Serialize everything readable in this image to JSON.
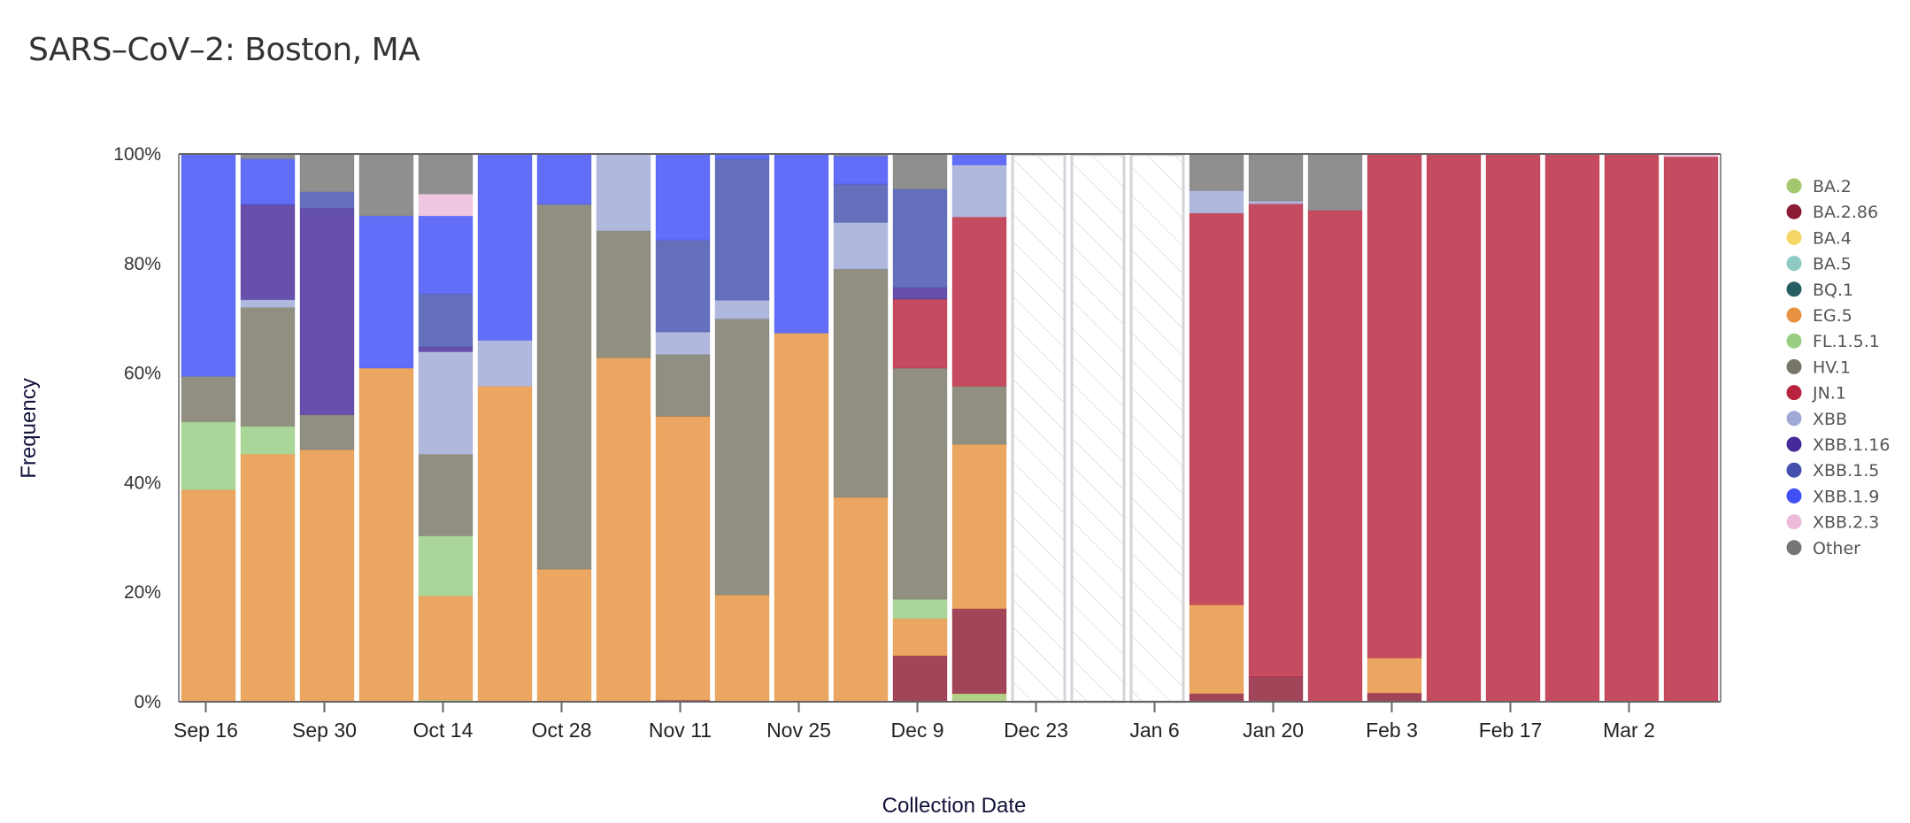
{
  "title": "SARS–CoV–2: Boston, MA",
  "chart_data": {
    "type": "bar",
    "stacked": true,
    "normalized": true,
    "title": "SARS–CoV–2: Boston, MA",
    "xlabel": "Collection Date",
    "ylabel": "Frequency",
    "ylim": [
      0,
      100
    ],
    "yticks": [
      "0%",
      "20%",
      "40%",
      "60%",
      "80%",
      "100%"
    ],
    "xtick_labels": [
      "Sep 16",
      "Sep 30",
      "Oct 14",
      "Oct 28",
      "Nov 11",
      "Nov 25",
      "Dec 9",
      "Dec 23",
      "Jan 6",
      "Jan 20",
      "Feb 3",
      "Feb 17",
      "Mar 2"
    ],
    "legend_position": "right",
    "legend": [
      {
        "name": "BA.2",
        "color": "#a2c76e"
      },
      {
        "name": "BA.2.86",
        "color": "#8c1c34"
      },
      {
        "name": "BA.4",
        "color": "#f5d666"
      },
      {
        "name": "BA.5",
        "color": "#8ecac4"
      },
      {
        "name": "BQ.1",
        "color": "#265e63"
      },
      {
        "name": "EG.5",
        "color": "#e69240"
      },
      {
        "name": "FL.1.5.1",
        "color": "#98cd82"
      },
      {
        "name": "HV.1",
        "color": "#777666"
      },
      {
        "name": "JN.1",
        "color": "#b8233d"
      },
      {
        "name": "XBB",
        "color": "#a0a8d6"
      },
      {
        "name": "XBB.1.16",
        "color": "#462a99"
      },
      {
        "name": "XBB.1.5",
        "color": "#4350ae"
      },
      {
        "name": "XBB.1.9",
        "color": "#3f4ef5"
      },
      {
        "name": "XBB.2.3",
        "color": "#ecbbdb"
      },
      {
        "name": "Other",
        "color": "#767676"
      }
    ],
    "categories": [
      "Sep 16",
      "Sep 23",
      "Sep 30",
      "Oct 7",
      "Oct 14",
      "Oct 21",
      "Oct 28",
      "Nov 4",
      "Nov 11",
      "Nov 18",
      "Nov 25",
      "Dec 2",
      "Dec 9",
      "Dec 16",
      "Dec 23",
      "Dec 30",
      "Jan 6",
      "Jan 13",
      "Jan 20",
      "Jan 27",
      "Feb 3",
      "Feb 10",
      "Feb 17",
      "Feb 24",
      "Mar 2",
      "Mar 9"
    ],
    "no_data": [
      false,
      false,
      false,
      false,
      false,
      false,
      false,
      false,
      false,
      false,
      false,
      false,
      false,
      false,
      true,
      true,
      true,
      false,
      false,
      false,
      false,
      false,
      false,
      false,
      false,
      false
    ],
    "series": [
      {
        "name": "BA.2",
        "values": [
          0,
          0,
          0,
          0,
          0.3,
          0,
          0,
          0,
          0,
          0,
          0,
          0,
          0,
          1.5,
          0,
          0,
          0,
          0,
          0,
          0,
          0,
          0,
          0,
          0,
          0,
          0
        ]
      },
      {
        "name": "BA.2.86",
        "values": [
          0,
          0,
          0,
          0,
          0,
          0,
          0,
          0,
          0.3,
          0,
          0,
          0,
          8.4,
          15.5,
          0,
          0,
          0,
          1.5,
          4.6,
          0,
          1.6,
          0,
          0,
          0,
          0,
          0
        ]
      },
      {
        "name": "BA.4",
        "values": [
          0,
          0,
          0,
          0,
          0,
          0,
          0,
          0,
          0,
          0,
          0,
          0,
          0,
          0,
          0,
          0,
          0,
          0,
          0,
          0,
          0,
          0,
          0,
          0,
          0,
          0
        ]
      },
      {
        "name": "BA.5",
        "values": [
          0,
          0,
          0,
          0,
          0,
          0,
          0,
          0,
          0,
          0,
          0,
          0,
          0,
          0,
          0,
          0,
          0,
          0,
          0,
          0,
          0,
          0,
          0,
          0,
          0,
          0
        ]
      },
      {
        "name": "BQ.1",
        "values": [
          0,
          0,
          0,
          0,
          0,
          0,
          0,
          0,
          0,
          0,
          0,
          0,
          0,
          0,
          0,
          0,
          0,
          0,
          0,
          0,
          0,
          0,
          0,
          0,
          0,
          0
        ]
      },
      {
        "name": "EG.5",
        "values": [
          38.7,
          45.2,
          46.0,
          60.9,
          19.0,
          57.6,
          24.2,
          62.8,
          51.8,
          19.5,
          67.3,
          37.3,
          6.8,
          30.0,
          0,
          0,
          0,
          16.2,
          0,
          0,
          6.4,
          0,
          0,
          0,
          0,
          0
        ]
      },
      {
        "name": "FL.1.5.1",
        "values": [
          12.4,
          5.1,
          0,
          0,
          11.0,
          0,
          0,
          0,
          0,
          0,
          0,
          0,
          3.5,
          0,
          0,
          0,
          0,
          0,
          0,
          0,
          0,
          0,
          0,
          0,
          0,
          0
        ]
      },
      {
        "name": "HV.1",
        "values": [
          8.3,
          21.7,
          6.4,
          0,
          14.9,
          0,
          66.6,
          23.2,
          11.3,
          50.4,
          0,
          41.7,
          42.2,
          10.6,
          0,
          0,
          0,
          0,
          0,
          0,
          0,
          0,
          0,
          0,
          0,
          0
        ]
      },
      {
        "name": "JN.1",
        "values": [
          0,
          0,
          0,
          0,
          0,
          0,
          0,
          0,
          0,
          0,
          0,
          0,
          12.6,
          30.9,
          0,
          0,
          0,
          71.5,
          86.3,
          89.7,
          92.0,
          100,
          100,
          100,
          100,
          99.5
        ]
      },
      {
        "name": "XBB",
        "values": [
          0,
          1.4,
          0,
          0,
          18.7,
          8.4,
          0,
          14.0,
          4.1,
          3.4,
          0,
          8.5,
          0,
          9.5,
          0,
          0,
          0,
          4.1,
          0.5,
          0,
          0,
          0,
          0,
          0,
          0,
          0
        ]
      },
      {
        "name": "XBB.1.16",
        "values": [
          0,
          17.4,
          37.7,
          0,
          0.9,
          0,
          0,
          0,
          0,
          0,
          0,
          0,
          2.1,
          0,
          0,
          0,
          0,
          0,
          0,
          0,
          0,
          0,
          0,
          0,
          0,
          0
        ]
      },
      {
        "name": "XBB.1.5",
        "values": [
          0,
          0,
          3.0,
          0,
          9.7,
          0,
          0,
          0,
          16.8,
          25.8,
          0,
          7.0,
          18.0,
          0,
          0,
          0,
          0,
          0,
          0,
          0,
          0,
          0,
          0,
          0,
          0,
          0
        ]
      },
      {
        "name": "XBB.1.9",
        "values": [
          40.6,
          8.3,
          0,
          27.8,
          14.2,
          34.0,
          9.2,
          0,
          15.7,
          0.9,
          32.7,
          5.1,
          0,
          2.0,
          0,
          0,
          0,
          0,
          0,
          0,
          0,
          0,
          0,
          0,
          0,
          0
        ]
      },
      {
        "name": "XBB.2.3",
        "values": [
          0,
          0,
          0,
          0,
          4.0,
          0,
          0,
          0,
          0,
          0,
          0,
          0,
          0,
          0,
          0,
          0,
          0,
          0,
          0,
          0,
          0,
          0,
          0,
          0,
          0,
          0.5
        ]
      },
      {
        "name": "Other",
        "values": [
          0,
          0.9,
          6.9,
          11.3,
          7.3,
          0,
          0,
          0,
          0,
          0,
          0,
          0.4,
          6.4,
          0,
          0,
          0,
          0,
          6.7,
          8.6,
          10.3,
          0,
          0,
          0,
          0,
          0,
          0
        ]
      }
    ]
  }
}
